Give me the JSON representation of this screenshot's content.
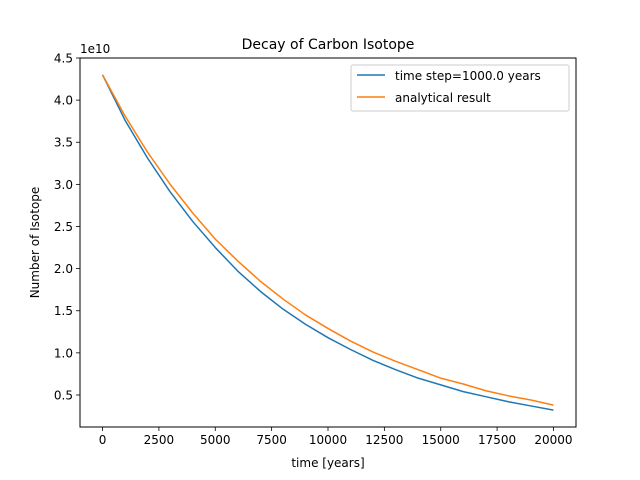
{
  "chart_data": {
    "type": "line",
    "title": "Decay of Carbon Isotope",
    "xlabel": "time [years]",
    "ylabel": "Number of Isotope",
    "y_offset_label": "1e10",
    "xlim": [
      -1000,
      21000
    ],
    "ylim": [
      0.12,
      4.5
    ],
    "x_ticks": [
      0,
      2500,
      5000,
      7500,
      10000,
      12500,
      15000,
      17500,
      20000
    ],
    "x_tick_labels": [
      "0",
      "2500",
      "5000",
      "7500",
      "10000",
      "12500",
      "15000",
      "17500",
      "20000"
    ],
    "y_ticks": [
      0.5,
      1.0,
      1.5,
      2.0,
      2.5,
      3.0,
      3.5,
      4.0,
      4.5
    ],
    "y_tick_labels": [
      "0.5",
      "1.0",
      "1.5",
      "2.0",
      "2.5",
      "3.0",
      "3.5",
      "4.0",
      "4.5"
    ],
    "grid": false,
    "legend_position": "top-right",
    "x": [
      0,
      1000,
      2000,
      3000,
      4000,
      5000,
      6000,
      7000,
      8000,
      9000,
      10000,
      11000,
      12000,
      13000,
      14000,
      15000,
      16000,
      17000,
      18000,
      19000,
      20000
    ],
    "series": [
      {
        "name": "time step=1000.0 years",
        "color": "#1f77b4",
        "values": [
          4.3,
          3.76,
          3.31,
          2.91,
          2.56,
          2.25,
          1.97,
          1.73,
          1.52,
          1.34,
          1.18,
          1.04,
          0.91,
          0.8,
          0.7,
          0.62,
          0.54,
          0.48,
          0.42,
          0.37,
          0.32
        ]
      },
      {
        "name": "analytical result",
        "color": "#ff7f0e",
        "values": [
          4.3,
          3.81,
          3.38,
          3.0,
          2.66,
          2.35,
          2.09,
          1.85,
          1.64,
          1.45,
          1.29,
          1.14,
          1.01,
          0.9,
          0.8,
          0.7,
          0.63,
          0.55,
          0.49,
          0.44,
          0.38
        ]
      }
    ]
  }
}
